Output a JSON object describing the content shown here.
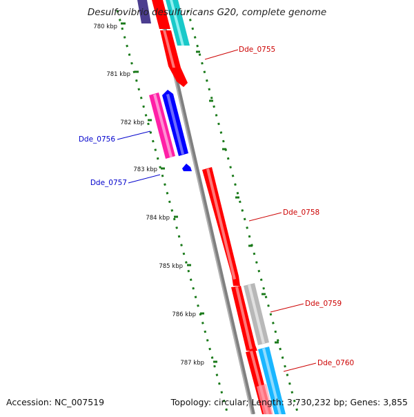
{
  "title": "Desulfovibrio desulfuricans G20, complete genome",
  "footer": {
    "accession": "Accession: NC_007519",
    "topology": "Topology: circular; Length: 3,730,232 bp; Genes: 3,855"
  },
  "scale_labels": [
    "780 kbp",
    "781 kbp",
    "782 kbp",
    "783 kbp",
    "784 kbp",
    "785 kbp",
    "786 kbp",
    "787 kbp"
  ],
  "gene_labels": [
    {
      "text": "Dde_0755",
      "color": "#cc0000"
    },
    {
      "text": "Dde_0756",
      "color": "#0000cc"
    },
    {
      "text": "Dde_0757",
      "color": "#0000cc"
    },
    {
      "text": "Dde_0758",
      "color": "#cc0000"
    },
    {
      "text": "Dde_0759",
      "color": "#cc0000"
    },
    {
      "text": "Dde_0760",
      "color": "#cc0000"
    }
  ],
  "colors": {
    "forward_gene": "#ff0000",
    "reverse_gene": "#0000ff",
    "backbone": "#808080",
    "ticks": "#1a7a1a",
    "cog_pink": "#ff1fa6",
    "cog_cyan": "#19c9c9",
    "cog_gray": "#c0c0c0",
    "cog_skyblue": "#19b6ff",
    "cog_purple": "#4b3d8f"
  }
}
